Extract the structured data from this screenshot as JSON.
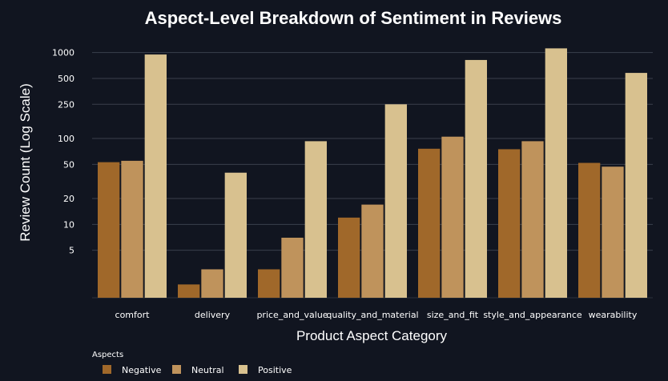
{
  "chart_data": {
    "type": "bar",
    "title": "Aspect-Level Breakdown of Sentiment in Reviews",
    "xlabel": "Product Aspect Category",
    "ylabel": "Review Count (Log Scale)",
    "yscale": "log",
    "ylim": [
      1.4,
      1400
    ],
    "yticks": [
      5,
      10,
      20,
      50,
      100,
      250,
      500,
      1000
    ],
    "grid": true,
    "legend_title": "Aspects",
    "legend_placement": "bottom-left",
    "categories": [
      "comfort",
      "delivery",
      "price_and_value",
      "quality_and_material",
      "size_and_fit",
      "style_and_appearance",
      "wearability"
    ],
    "series": [
      {
        "name": "Negative",
        "color": "#a0682a",
        "values": [
          53,
          2,
          3,
          12,
          76,
          75,
          52
        ]
      },
      {
        "name": "Neutral",
        "color": "#bf935c",
        "values": [
          55,
          3,
          7,
          17,
          105,
          93,
          47
        ]
      },
      {
        "name": "Positive",
        "color": "#d8c18f",
        "values": [
          950,
          40,
          93,
          250,
          820,
          1120,
          580
        ]
      }
    ]
  }
}
